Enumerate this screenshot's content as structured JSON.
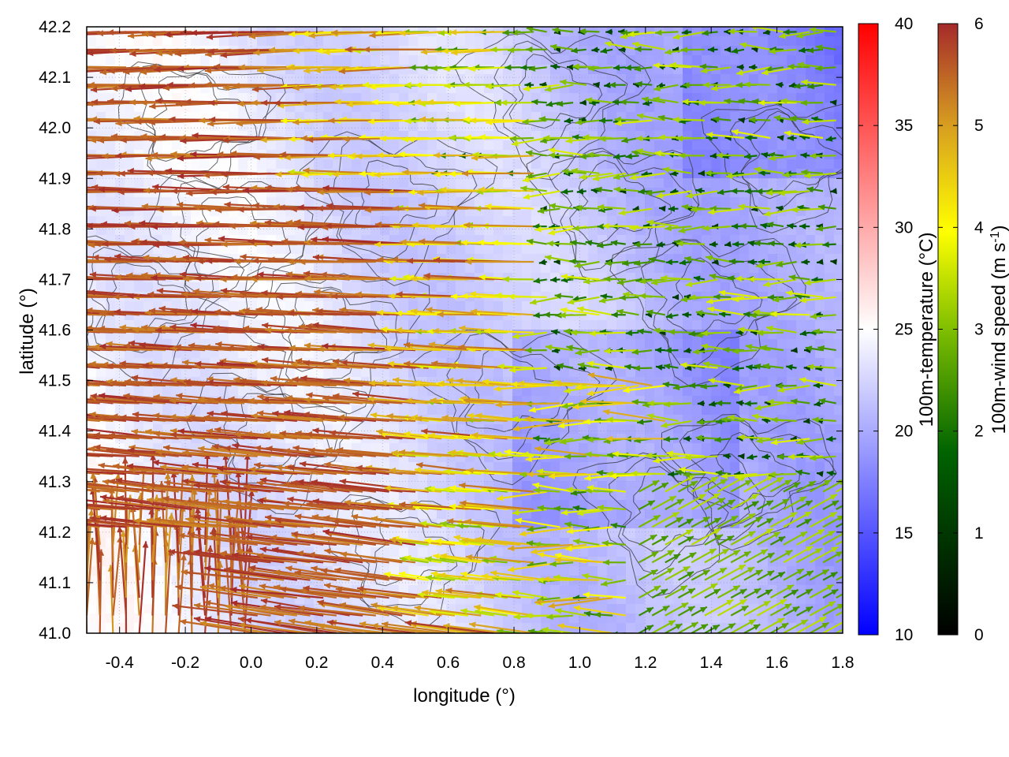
{
  "chart_data": {
    "type": "heatmap",
    "title": "",
    "xlabel": "longitude (°)",
    "ylabel": "latitude (°)",
    "xlim": [
      -0.5,
      1.8
    ],
    "ylim": [
      41.0,
      42.2
    ],
    "xticks": [
      -0.4,
      -0.2,
      0.0,
      0.2,
      0.4,
      0.6,
      0.8,
      1.0,
      1.2,
      1.4,
      1.6,
      1.8
    ],
    "xtick_labels": [
      "-0.4",
      "-0.2",
      "0.0",
      "0.2",
      "0.4",
      "0.6",
      "0.8",
      "1.0",
      "1.2",
      "1.4",
      "1.6",
      "1.8"
    ],
    "yticks": [
      41.0,
      41.1,
      41.2,
      41.3,
      41.4,
      41.5,
      41.6,
      41.7,
      41.8,
      41.9,
      42.0,
      42.1,
      42.2
    ],
    "ytick_labels": [
      "41.0",
      "41.1",
      "41.2",
      "41.3",
      "41.4",
      "41.5",
      "41.6",
      "41.7",
      "41.8",
      "41.9",
      "42.0",
      "42.1",
      "42.2"
    ],
    "grid": true,
    "temperature_colorbar": {
      "label": "100m-temperature (°C)",
      "range": [
        10,
        40
      ],
      "ticks": [
        10,
        15,
        20,
        25,
        30,
        35,
        40
      ],
      "tick_labels": [
        "10",
        "15",
        "20",
        "25",
        "30",
        "35",
        "40"
      ],
      "colors": [
        "#0000ff",
        "#ffffff",
        "#ff0000"
      ]
    },
    "wind_colorbar": {
      "label": "100m-wind speed (m s-1)",
      "label_main": "100m-wind speed (m s",
      "label_sup": "-1",
      "label_end": ")",
      "range": [
        0,
        6
      ],
      "ticks": [
        0,
        1,
        2,
        3,
        4,
        5,
        6
      ],
      "tick_labels": [
        "0",
        "1",
        "2",
        "3",
        "4",
        "5",
        "6"
      ],
      "colors": [
        "#000000",
        "#006400",
        "#7fbf00",
        "#ffff00",
        "#d8a020",
        "#a52a2a"
      ]
    },
    "temperature_field": {
      "description_values": [
        {
          "lon": -0.3,
          "lat": 41.2,
          "temp": 25
        },
        {
          "lon": 0.0,
          "lat": 41.7,
          "temp": 21
        },
        {
          "lon": 0.5,
          "lat": 41.9,
          "temp": 20
        },
        {
          "lon": 1.0,
          "lat": 41.4,
          "temp": 16
        },
        {
          "lon": 1.5,
          "lat": 42.1,
          "temp": 13
        },
        {
          "lon": 1.6,
          "lat": 41.1,
          "temp": 17
        }
      ]
    },
    "wind_field": {
      "regimes": [
        {
          "region": "west (lon -0.5 to 0.9)",
          "direction": "from east (westward flow)",
          "speed": 6
        },
        {
          "region": "southwest corner (lon -0.5 to 0.0, lat 41.0-41.2)",
          "direction": "northward",
          "speed": 5.5
        },
        {
          "region": "east (lon 1.2 to 1.8, lat 41.0-41.3)",
          "direction": "north-eastward",
          "speed": 2.8
        },
        {
          "region": "east (lon 1.3 to 1.8, lat 41.4-42.2)",
          "direction": "westward",
          "speed": 2
        }
      ]
    }
  }
}
